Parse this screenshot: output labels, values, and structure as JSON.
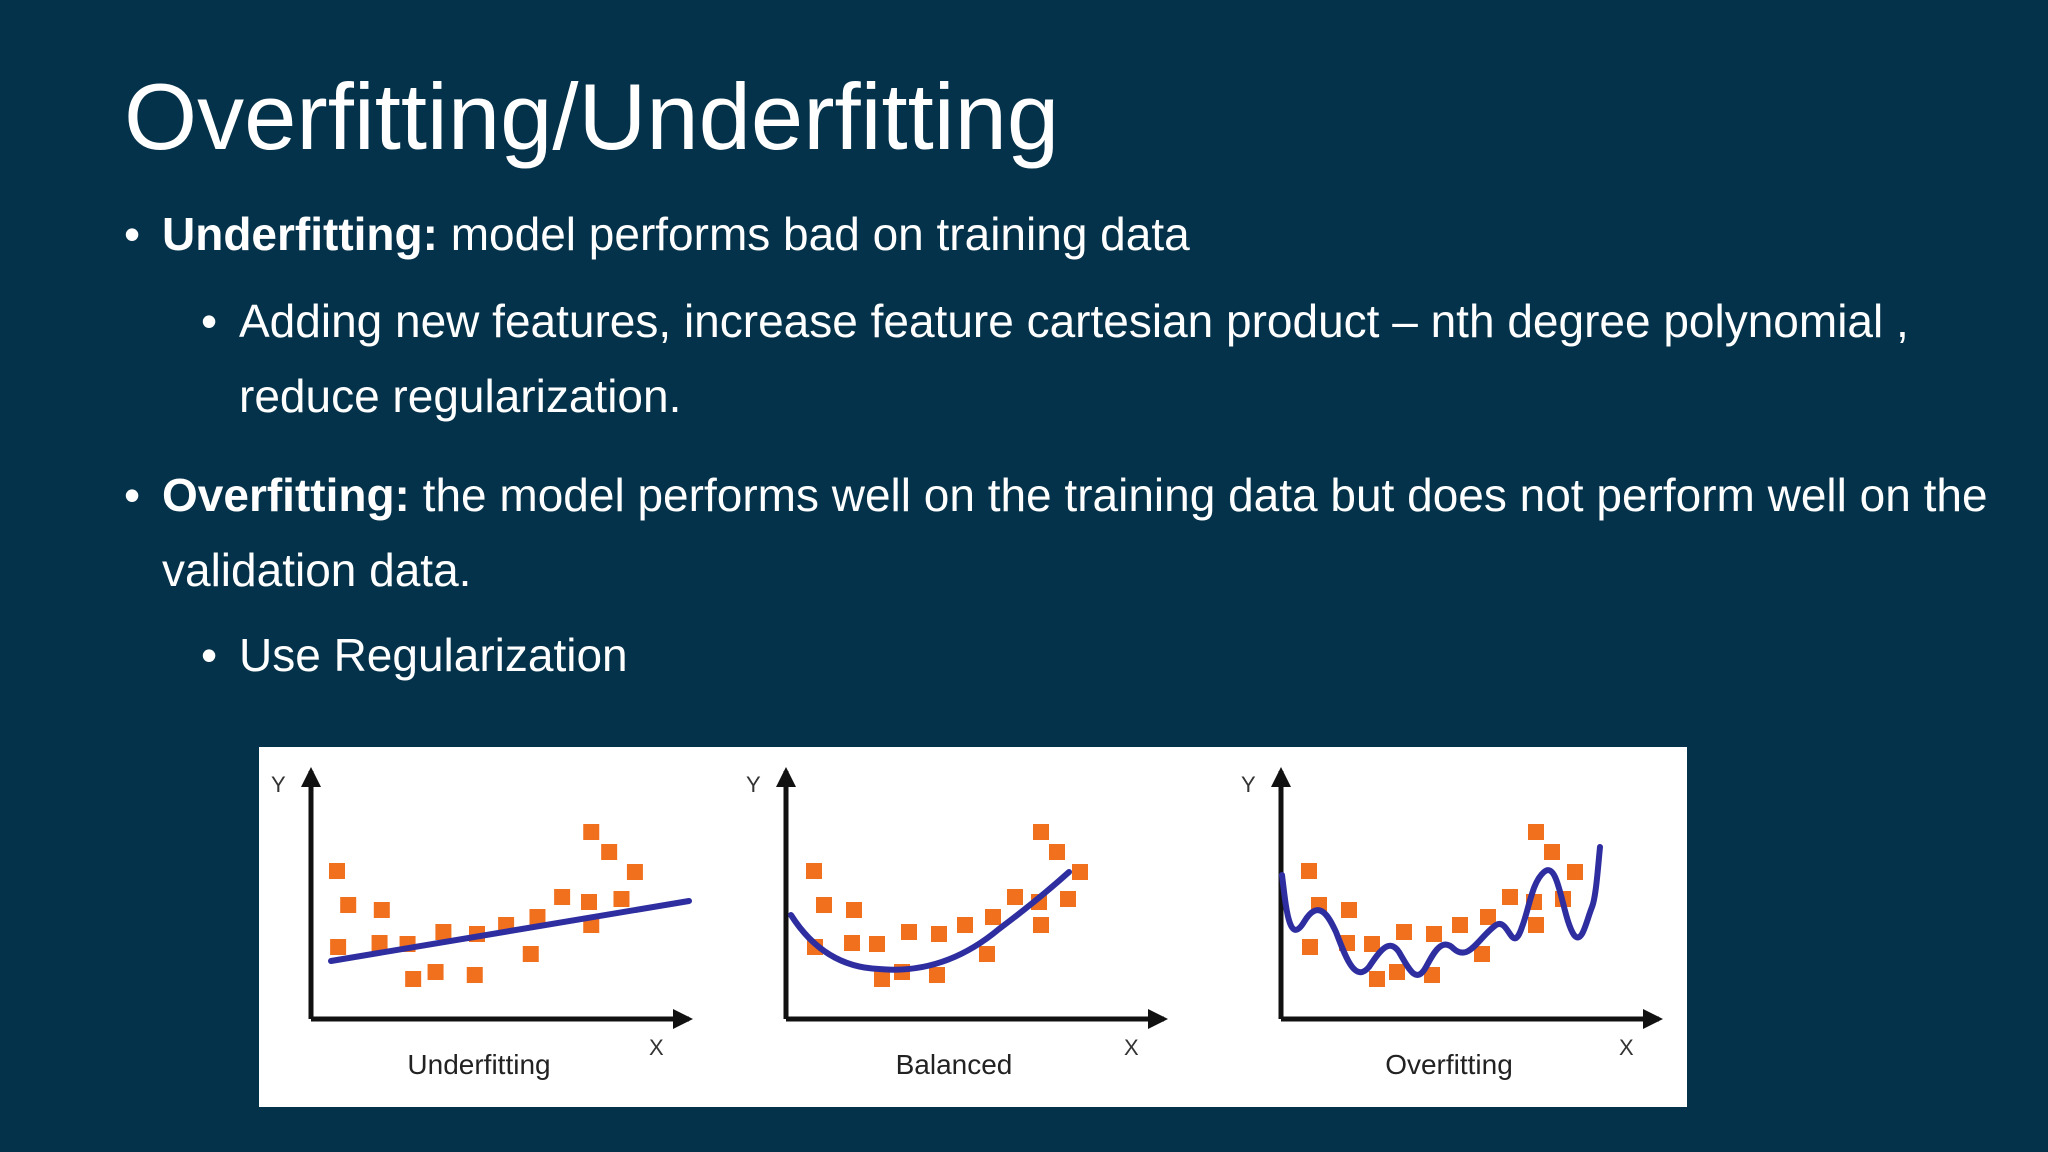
{
  "colors": {
    "background": "#04324a",
    "text": "#ffffff",
    "point": "#f0701e",
    "curve": "#2e2ea0",
    "axis": "#111111"
  },
  "slide": {
    "title": "Overfitting/Underfitting",
    "bullets": [
      {
        "term": "Underfitting:",
        "text": " model performs bad on training data",
        "sub": [
          "Adding new features, increase feature cartesian product – nth degree polynomial , reduce regularization."
        ]
      },
      {
        "term": "Overfitting:",
        "text": " the model performs well on the training data but does not perform well on the validation data.",
        "sub": [
          "Use Regularization"
        ]
      }
    ],
    "bullet_glyph": "•"
  },
  "figure": {
    "panels": [
      {
        "label": "Underfitting",
        "y_axis": "Y",
        "x_axis": "X",
        "fit": "linear"
      },
      {
        "label": "Balanced",
        "y_axis": "Y",
        "x_axis": "X",
        "fit": "quadratic"
      },
      {
        "label": "Overfitting",
        "y_axis": "Y",
        "x_axis": "X",
        "fit": "wiggly"
      }
    ]
  }
}
